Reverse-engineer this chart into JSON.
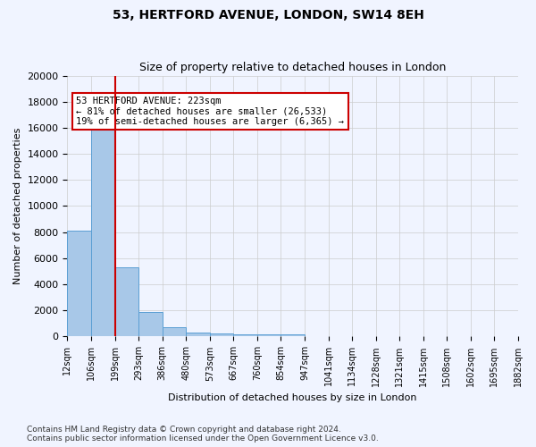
{
  "title": "53, HERTFORD AVENUE, LONDON, SW14 8EH",
  "subtitle": "Size of property relative to detached houses in London",
  "xlabel": "Distribution of detached houses by size in London",
  "ylabel": "Number of detached properties",
  "footnote": "Contains HM Land Registry data © Crown copyright and database right 2024.\nContains public sector information licensed under the Open Government Licence v3.0.",
  "bar_values": [
    8100,
    16500,
    5300,
    1850,
    700,
    320,
    230,
    190,
    170,
    150,
    0,
    0,
    0,
    0,
    0,
    0,
    0,
    0,
    0
  ],
  "bar_labels": [
    "12sqm",
    "106sqm",
    "199sqm",
    "293sqm",
    "386sqm",
    "480sqm",
    "573sqm",
    "667sqm",
    "760sqm",
    "854sqm",
    "947sqm",
    "1041sqm",
    "1134sqm",
    "1228sqm",
    "1321sqm",
    "1415sqm",
    "1508sqm",
    "1602sqm",
    "1695sqm",
    "1882sqm"
  ],
  "bar_color": "#a8c8e8",
  "bar_edge_color": "#5a9fd4",
  "ylim": [
    0,
    20000
  ],
  "yticks": [
    0,
    2000,
    4000,
    6000,
    8000,
    10000,
    12000,
    14000,
    16000,
    18000,
    20000
  ],
  "property_line_x": 2,
  "property_line_color": "#cc0000",
  "annotation_title": "53 HERTFORD AVENUE: 223sqm",
  "annotation_line1": "← 81% of detached houses are smaller (26,533)",
  "annotation_line2": "19% of semi-detached houses are larger (6,365) →",
  "annotation_box_color": "#ffffff",
  "annotation_box_edge": "#cc0000",
  "bg_color": "#f0f4ff",
  "grid_color": "#cccccc"
}
